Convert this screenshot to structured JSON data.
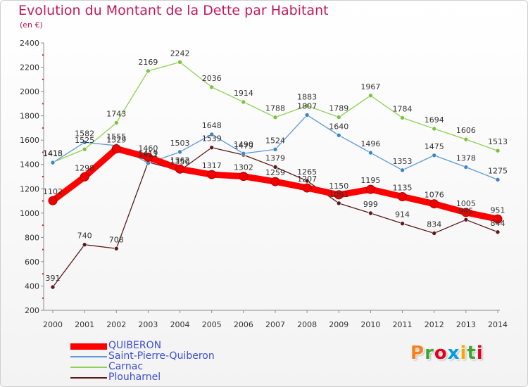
{
  "header": {
    "title": "Evolution du Montant de la Dette par Habitant",
    "subtitle": "(en €)"
  },
  "logo": {
    "letters": [
      "P",
      "r",
      "o",
      "x",
      "i",
      "t",
      "i"
    ],
    "colors": [
      "#f58220",
      "#3fa535",
      "#e2001a",
      "#009fe3",
      "#f7a600",
      "#3fa535",
      "#e2001a"
    ]
  },
  "chart_data": {
    "type": "line",
    "title": "Evolution du Montant de la Dette par Habitant",
    "subtitle": "(en €)",
    "xlabel": "",
    "ylabel": "",
    "x": [
      "2000",
      "2001",
      "2002",
      "2003",
      "2004",
      "2005",
      "2006",
      "2007",
      "2008",
      "2009",
      "2010",
      "2011",
      "2012",
      "2013",
      "2014"
    ],
    "ylim": [
      200,
      2400
    ],
    "yticks": [
      200,
      400,
      600,
      800,
      1000,
      1200,
      1400,
      1600,
      1800,
      2000,
      2200,
      2400
    ],
    "grid": false,
    "legend_position": "bottom-left",
    "series": [
      {
        "name": "Plouharnel",
        "color": "#5a1a1a",
        "marker_color": "#5e1a1a",
        "style": "thin",
        "values": [
          391,
          740,
          708,
          1419,
          1350,
          1539,
          1479,
          1379,
          1265,
          1081,
          999,
          914,
          834,
          945,
          844
        ],
        "labels": [
          "391",
          "740",
          "708",
          "1419",
          "1350",
          "1539",
          "1479",
          "1379",
          "1265",
          "1081",
          "999",
          "914",
          "834",
          "945",
          "844"
        ]
      },
      {
        "name": "Carnac",
        "color": "#8fd14f",
        "marker_color": "#7cc242",
        "style": "thin",
        "values": [
          1418,
          1525,
          1743,
          2169,
          2242,
          2036,
          1914,
          1788,
          1883,
          1789,
          1967,
          1784,
          1694,
          1606,
          1513
        ],
        "labels": [
          "1418",
          "1525",
          "1743",
          "2169",
          "2242",
          "2036",
          "1914",
          "1788",
          "1883",
          "1789",
          "1967",
          "1784",
          "1694",
          "1606",
          "1513"
        ]
      },
      {
        "name": "Saint-Pierre-Quiberon",
        "color": "#5a9ad6",
        "marker_color": "#3d85c6",
        "style": "thin",
        "values": [
          1415,
          1582,
          1555,
          1411,
          1503,
          1648,
          1490,
          1524,
          1807,
          1640,
          1496,
          1353,
          1475,
          1378,
          1275
        ],
        "labels": [
          "1415",
          "1582",
          "1555",
          "1411",
          "1503",
          "1648",
          "1490",
          "1524",
          "1807",
          "1640",
          "1496",
          "1353",
          "1475",
          "1378",
          "1275"
        ]
      },
      {
        "name": "QUIBERON",
        "color": "#ff0000",
        "marker_color": "#ee0000",
        "style": "thick",
        "values": [
          1102,
          1298,
          1529,
          1460,
          1362,
          1317,
          1302,
          1259,
          1207,
          1150,
          1195,
          1135,
          1076,
          1005,
          951
        ],
        "labels": [
          "1102",
          "1298",
          "1529",
          "1460",
          "1362",
          "1317",
          "1302",
          "1259",
          "1207",
          "1150",
          "1195",
          "1135",
          "1076",
          "1005",
          "951"
        ]
      }
    ]
  },
  "legend": [
    {
      "label": "QUIBERON",
      "color": "#ff0000",
      "thick": true
    },
    {
      "label": "Saint-Pierre-Quiberon",
      "color": "#5a9ad6",
      "thick": false
    },
    {
      "label": "Carnac",
      "color": "#8fd14f",
      "thick": false
    },
    {
      "label": "Plouharnel",
      "color": "#5a1a1a",
      "thick": false
    }
  ]
}
